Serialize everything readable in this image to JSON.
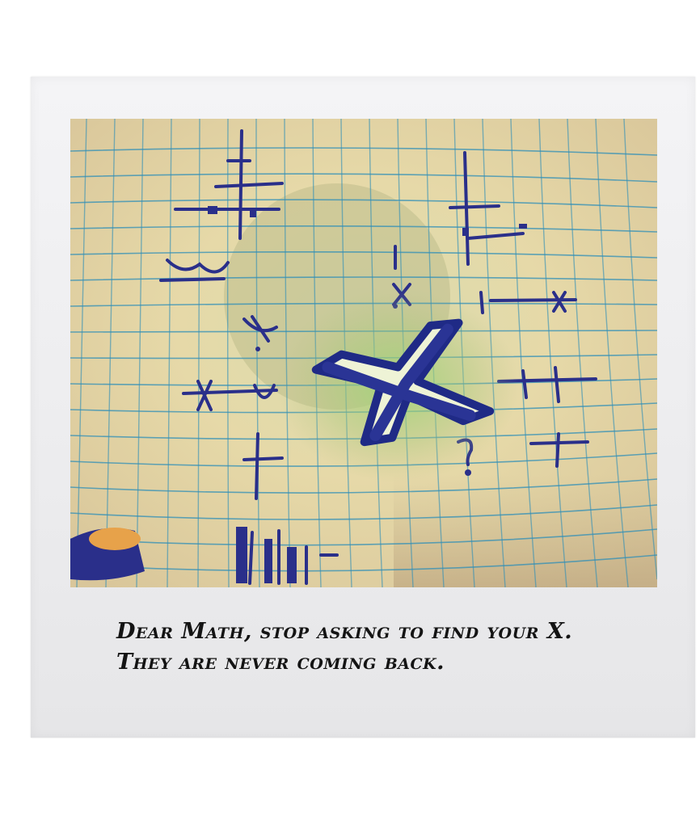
{
  "caption": {
    "line1": "Dear Math, stop asking to find your X.",
    "line2": "They are never coming back."
  },
  "colors": {
    "paper": "#e8d9b0",
    "grid": "#2f8fb8",
    "ink": "#2a2f8a",
    "glow": "#8fcf6a",
    "frame": "#efeff1"
  },
  "icons": {
    "x_symbol": "big-x-letter"
  }
}
